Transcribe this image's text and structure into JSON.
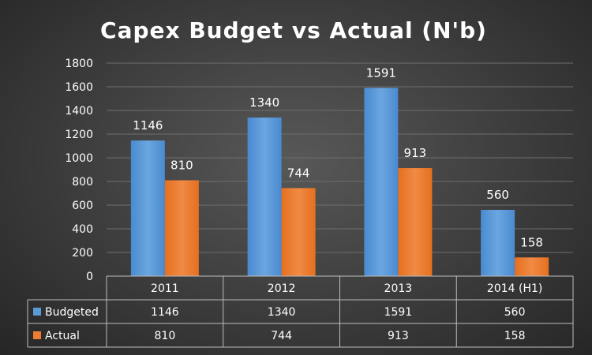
{
  "chart_data": {
    "type": "bar",
    "title": "Capex Budget vs Actual (N'b)",
    "categories": [
      "2011",
      "2012",
      "2013",
      "2014 (H1)"
    ],
    "series": [
      {
        "name": "Budgeted",
        "values": [
          1146,
          1340,
          1591,
          560
        ],
        "color": "#5b9bd5"
      },
      {
        "name": "Actual",
        "values": [
          810,
          744,
          913,
          158
        ],
        "color": "#ed7d31"
      }
    ],
    "ylim": [
      0,
      1800
    ],
    "yticks": [
      0,
      200,
      400,
      600,
      800,
      1000,
      1200,
      1400,
      1600,
      1800
    ],
    "xlabel": "",
    "ylabel": "",
    "grid": true,
    "data_table": true,
    "legend_placement": "data-table-left"
  }
}
